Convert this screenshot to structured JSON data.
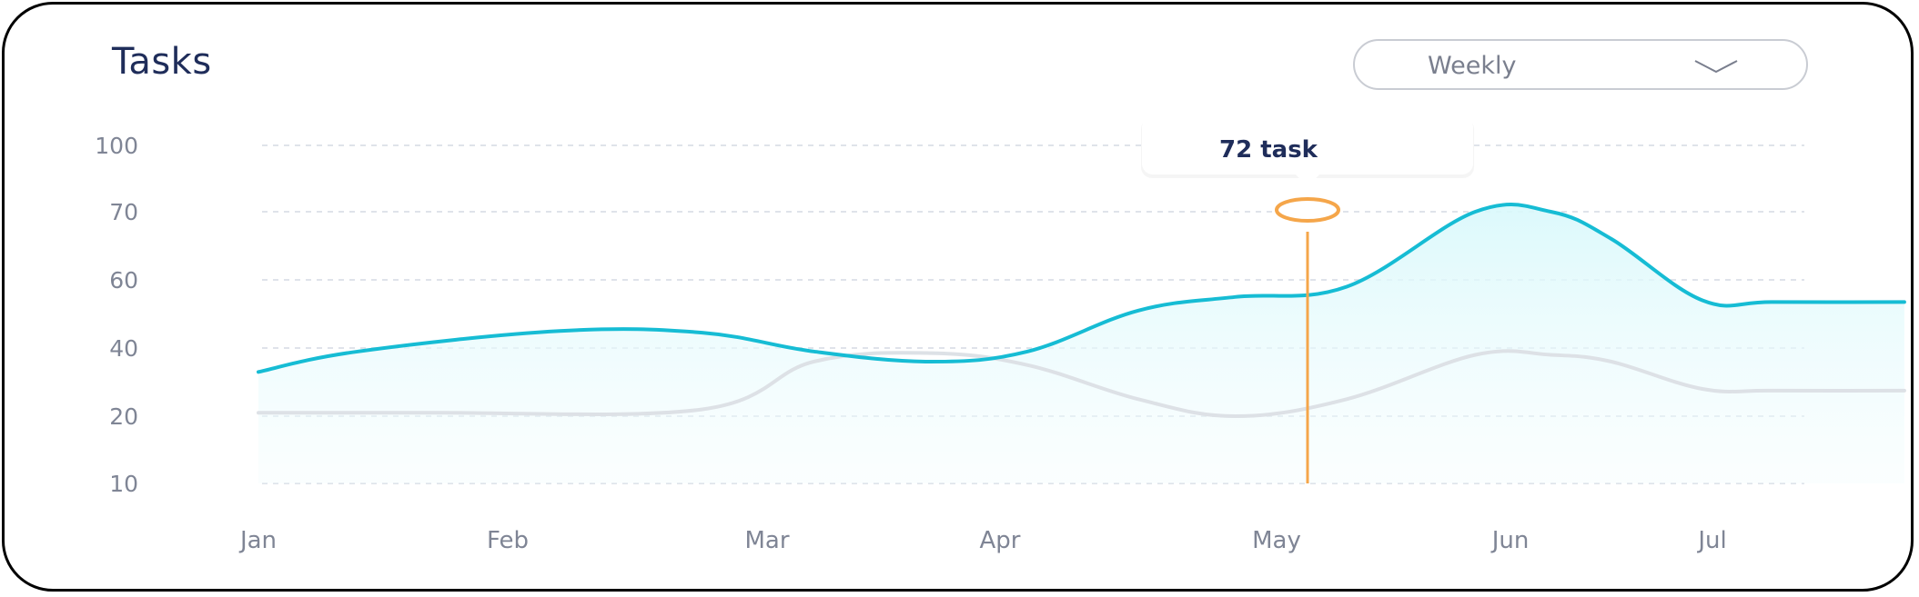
{
  "header": {
    "title": "Tasks"
  },
  "period_select": {
    "selected": "Weekly",
    "icon": "chevron-down-icon"
  },
  "tooltip": {
    "label": "72 task",
    "month": "May"
  },
  "colors": {
    "primary": "#16bcd4",
    "secondary": "#dde1e6",
    "highlight": "#f5a64a",
    "fill": "#e9fbfd"
  },
  "chart_data": {
    "type": "line",
    "title": "Tasks",
    "xlabel": "",
    "ylabel": "",
    "categories": [
      "Jan",
      "Feb",
      "Mar",
      "Apr",
      "May",
      "Jun",
      "Jul"
    ],
    "y_ticks": [
      100,
      70,
      60,
      40,
      20,
      10
    ],
    "series": [
      {
        "name": "",
        "color": "#16bcd4",
        "area": true,
        "points": [
          [
            0,
            33
          ],
          [
            0.4,
            39
          ],
          [
            1.2,
            45
          ],
          [
            1.75,
            44.5
          ],
          [
            2.2,
            39
          ],
          [
            2.7,
            36
          ],
          [
            3.1,
            39
          ],
          [
            3.5,
            51
          ],
          [
            3.85,
            55
          ],
          [
            4.3,
            58
          ],
          [
            4.85,
            70
          ],
          [
            5.2,
            70
          ],
          [
            5.5,
            66
          ],
          [
            5.95,
            54
          ],
          [
            6.3,
            53.5
          ],
          [
            6.95,
            53.5
          ]
        ]
      },
      {
        "name": "",
        "color": "#dde1e6",
        "area": false,
        "points": [
          [
            0,
            21
          ],
          [
            0.7,
            21
          ],
          [
            1.75,
            22
          ],
          [
            2.2,
            36
          ],
          [
            2.7,
            38.5
          ],
          [
            3.1,
            35
          ],
          [
            3.5,
            25
          ],
          [
            3.85,
            20
          ],
          [
            4.3,
            25
          ],
          [
            4.85,
            38
          ],
          [
            5.2,
            38
          ],
          [
            5.5,
            36
          ],
          [
            5.95,
            28
          ],
          [
            6.3,
            27.5
          ],
          [
            6.95,
            27.5
          ]
        ]
      }
    ],
    "highlight": {
      "category": "May",
      "value": 72,
      "label": "72 task"
    },
    "grid": true,
    "legend": "none"
  }
}
